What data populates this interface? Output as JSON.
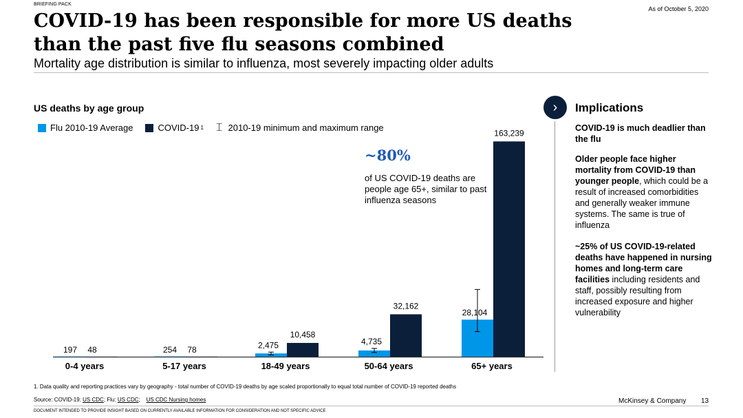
{
  "header": {
    "briefing": "BRIEFING PACK",
    "as_of": "As of October 5, 2020",
    "title": "COVID-19 has been responsible for more US deaths than the past five flu seasons combined",
    "subtitle": "Mortality age distribution is similar to influenza, most severely impacting older adults"
  },
  "legend": {
    "flu": "Flu 2010-19 Average",
    "covid": "COVID-19",
    "covid_sup": "1",
    "range": "2010-19 minimum and maximum range"
  },
  "callout": {
    "pct": "~80%",
    "text": "of US COVID-19 deaths are people age 65+, similar to past influenza seasons"
  },
  "colors": {
    "flu": "#0096e8",
    "covid": "#0b1f3a",
    "axis": "#333333"
  },
  "chart_data": {
    "type": "bar",
    "title": "US deaths by age group",
    "categories": [
      "0-4 years",
      "5-17 years",
      "18-49 years",
      "50-64 years",
      "65+ years"
    ],
    "series": [
      {
        "name": "Flu 2010-19 Average",
        "values": [
          197,
          254,
          2475,
          4735,
          28104
        ],
        "labels": [
          "197",
          "254",
          "2,475",
          "4,735",
          "28,104"
        ]
      },
      {
        "name": "COVID-19",
        "values": [
          48,
          78,
          10458,
          32162,
          163239
        ],
        "labels": [
          "48",
          "78",
          "10,458",
          "32,162",
          "163,239"
        ]
      }
    ],
    "flu_range": [
      [
        0,
        0
      ],
      [
        0,
        0
      ],
      [
        1300,
        3500
      ],
      [
        3200,
        6300
      ],
      [
        19000,
        51000
      ]
    ],
    "ylim": [
      0,
      165000
    ],
    "xlabel": "",
    "ylabel": ""
  },
  "implications": {
    "heading": "Implications",
    "p1_bold": "COVID-19 is much deadlier than the flu",
    "p2_bold": "Older people face higher mortality from COVID-19 than younger people",
    "p2_rest": ", which could be a result of increased comorbidities and generally weaker immune systems. The same is true of influenza",
    "p3_bold": "~25% of US COVID-19-related deaths have happened in nursing homes and long-term care facilities",
    "p3_rest": " including residents and staff, possibly resulting from increased exposure and higher vulnerability"
  },
  "footer": {
    "footnote": "1. Data quality and reporting practices vary by geography - total number of COVID-19 deaths by age scaled proportionally to equal total number of COVID-19 reported deaths",
    "source_prefix": "Source: COVID-19: ",
    "link1": "US CDC",
    "sep1": "; Flu: ",
    "link2": "US CDC",
    "sep2": ";",
    "link3": "US CDC Nursing homes",
    "brand": "McKinsey & Company",
    "page": "13",
    "disclaimer": "DOCUMENT INTENDED TO PROVIDE INSIGHT BASED ON CURRENTLY AVAILABLE INFORMATION FOR CONSIDERATION AND NOT SPECIFIC ADVICE"
  }
}
